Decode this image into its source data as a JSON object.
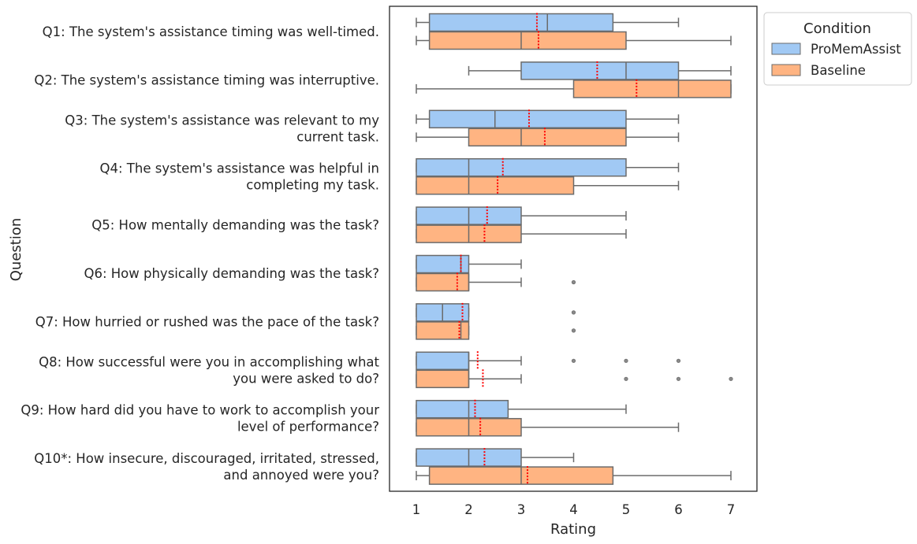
{
  "chart_data": {
    "type": "box",
    "orientation": "horizontal",
    "xlabel": "Rating",
    "ylabel": "Question",
    "xlim": [
      0.5,
      7.5
    ],
    "xticks": [
      1,
      2,
      3,
      4,
      5,
      6,
      7
    ],
    "grid": false,
    "legend": {
      "title": "Condition",
      "placement": "outside-top-right",
      "entries": [
        {
          "name": "ProMemAssist",
          "color": "#a1c9f4"
        },
        {
          "name": "Baseline",
          "color": "#ffb482"
        }
      ]
    },
    "box_edge_color": "#6b6b6b",
    "mean_line_color": "#ff0000",
    "questions": [
      {
        "label_lines": [
          "Q1: The system's assistance timing was well-timed."
        ],
        "ProMemAssist": {
          "whislo": 1,
          "q1": 1.25,
          "median": 3.5,
          "q3": 4.75,
          "whishi": 6,
          "mean": 3.3,
          "fliers": []
        },
        "Baseline": {
          "whislo": 1,
          "q1": 1.25,
          "median": 3,
          "q3": 5,
          "whishi": 7,
          "mean": 3.33,
          "fliers": []
        }
      },
      {
        "label_lines": [
          "Q2: The system's assistance timing was interruptive."
        ],
        "ProMemAssist": {
          "whislo": 2,
          "q1": 3,
          "median": 5,
          "q3": 6,
          "whishi": 7,
          "mean": 4.45,
          "fliers": []
        },
        "Baseline": {
          "whislo": 1,
          "q1": 4,
          "median": 6,
          "q3": 7,
          "whishi": 7,
          "mean": 5.2,
          "fliers": []
        }
      },
      {
        "label_lines": [
          "Q3: The system's assistance was relevant to my",
          "current task."
        ],
        "ProMemAssist": {
          "whislo": 1,
          "q1": 1.25,
          "median": 2.5,
          "q3": 5,
          "whishi": 6,
          "mean": 3.15,
          "fliers": []
        },
        "Baseline": {
          "whislo": 1,
          "q1": 2,
          "median": 3,
          "q3": 5,
          "whishi": 6,
          "mean": 3.45,
          "fliers": []
        }
      },
      {
        "label_lines": [
          "Q4: The system's assistance was helpful in",
          "completing my task."
        ],
        "ProMemAssist": {
          "whislo": 1,
          "q1": 1,
          "median": 2,
          "q3": 5,
          "whishi": 6,
          "mean": 2.65,
          "fliers": []
        },
        "Baseline": {
          "whislo": 1,
          "q1": 1,
          "median": 2,
          "q3": 4,
          "whishi": 6,
          "mean": 2.55,
          "fliers": []
        }
      },
      {
        "label_lines": [
          "Q5: How mentally demanding was the task?"
        ],
        "ProMemAssist": {
          "whislo": 1,
          "q1": 1,
          "median": 2,
          "q3": 3,
          "whishi": 5,
          "mean": 2.35,
          "fliers": []
        },
        "Baseline": {
          "whislo": 1,
          "q1": 1,
          "median": 2,
          "q3": 3,
          "whishi": 5,
          "mean": 2.3,
          "fliers": []
        }
      },
      {
        "label_lines": [
          "Q6: How physically demanding was the task?"
        ],
        "ProMemAssist": {
          "whislo": 1,
          "q1": 1,
          "median": 1.85,
          "q3": 2,
          "whishi": 3,
          "mean": 1.85,
          "fliers": []
        },
        "Baseline": {
          "whislo": 1,
          "q1": 1,
          "median": 2,
          "q3": 2,
          "whishi": 3,
          "mean": 1.78,
          "fliers": [
            4
          ]
        }
      },
      {
        "label_lines": [
          "Q7: How hurried or rushed was the pace of the task?"
        ],
        "ProMemAssist": {
          "whislo": 1,
          "q1": 1,
          "median": 1.5,
          "q3": 2,
          "whishi": 2,
          "mean": 1.88,
          "fliers": [
            4
          ]
        },
        "Baseline": {
          "whislo": 1,
          "q1": 1,
          "median": 1.85,
          "q3": 2,
          "whishi": 2,
          "mean": 1.82,
          "fliers": [
            4
          ]
        }
      },
      {
        "label_lines": [
          "Q8: How successful were you in accomplishing what",
          "you were asked to do?"
        ],
        "ProMemAssist": {
          "whislo": 1,
          "q1": 1,
          "median": 2,
          "q3": 2,
          "whishi": 3,
          "mean": 2.17,
          "fliers": [
            4,
            5,
            6
          ]
        },
        "Baseline": {
          "whislo": 1,
          "q1": 1,
          "median": 2,
          "q3": 2,
          "whishi": 3,
          "mean": 2.27,
          "fliers": [
            5,
            6,
            7
          ]
        }
      },
      {
        "label_lines": [
          "Q9: How hard did you have to work to accomplish your",
          "level of performance?"
        ],
        "ProMemAssist": {
          "whislo": 1,
          "q1": 1,
          "median": 2,
          "q3": 2.75,
          "whishi": 5,
          "mean": 2.12,
          "fliers": []
        },
        "Baseline": {
          "whislo": 1,
          "q1": 1,
          "median": 2,
          "q3": 3,
          "whishi": 6,
          "mean": 2.22,
          "fliers": []
        }
      },
      {
        "label_lines": [
          "Q10*: How insecure, discouraged, irritated, stressed,",
          "and annoyed were you?"
        ],
        "ProMemAssist": {
          "whislo": 1,
          "q1": 1,
          "median": 2,
          "q3": 3,
          "whishi": 4,
          "mean": 2.3,
          "fliers": []
        },
        "Baseline": {
          "whislo": 1,
          "q1": 1.25,
          "median": 3,
          "q3": 4.75,
          "whishi": 7,
          "mean": 3.12,
          "fliers": []
        }
      }
    ]
  }
}
